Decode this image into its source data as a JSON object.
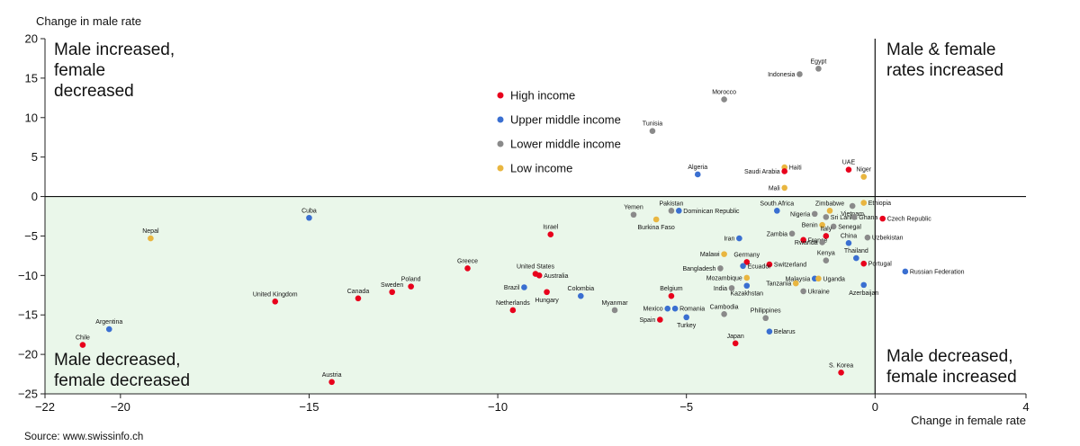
{
  "chart_data": {
    "type": "scatter",
    "title": "",
    "xlabel": "Change in female rate",
    "ylabel": "Change in male rate",
    "xlim": [
      -22,
      4
    ],
    "ylim": [
      -25,
      20
    ],
    "xticks": [
      -22,
      -20,
      -15,
      -10,
      -5,
      0,
      4
    ],
    "yticks": [
      20,
      15,
      10,
      5,
      0,
      -5,
      -10,
      -15,
      -20,
      -25
    ],
    "source": "Source: www.swissinfo.ch",
    "quadrants": {
      "top_left": [
        "Male increased,",
        "female",
        "decreased"
      ],
      "top_right": [
        "Male & female",
        "rates increased"
      ],
      "bottom_left": [
        "Male decreased,",
        "female decreased"
      ],
      "bottom_right": [
        "Male decreased,",
        "female increased"
      ]
    },
    "shaded_region": {
      "x": [
        -22,
        0
      ],
      "y": [
        -25,
        0
      ],
      "color": "#eaf7ea"
    },
    "legend": [
      {
        "key": "high",
        "label": "High income",
        "color": "#e8001c"
      },
      {
        "key": "upper",
        "label": "Upper middle income",
        "color": "#3a6fd1"
      },
      {
        "key": "lower",
        "label": "Lower middle income",
        "color": "#8a8a8a"
      },
      {
        "key": "low",
        "label": "Low income",
        "color": "#e9b640"
      }
    ],
    "points": [
      {
        "name": "Egypt",
        "x": -1.5,
        "y": 16.2,
        "group": "lower",
        "pos": "above"
      },
      {
        "name": "Indonesia",
        "x": -2.0,
        "y": 15.5,
        "group": "lower",
        "pos": "left"
      },
      {
        "name": "Morocco",
        "x": -4.0,
        "y": 12.3,
        "group": "lower",
        "pos": "above"
      },
      {
        "name": "Tunisia",
        "x": -5.9,
        "y": 8.3,
        "group": "lower",
        "pos": "above"
      },
      {
        "name": "Algeria",
        "x": -4.7,
        "y": 2.8,
        "group": "upper",
        "pos": "above"
      },
      {
        "name": "Haiti",
        "x": -2.4,
        "y": 3.7,
        "group": "low",
        "pos": "right"
      },
      {
        "name": "Saudi Arabia",
        "x": -2.4,
        "y": 3.2,
        "group": "high",
        "pos": "left"
      },
      {
        "name": "UAE",
        "x": -0.7,
        "y": 3.4,
        "group": "high",
        "pos": "above"
      },
      {
        "name": "Niger",
        "x": -0.3,
        "y": 2.5,
        "group": "low",
        "pos": "above"
      },
      {
        "name": "Mali",
        "x": -2.4,
        "y": 1.1,
        "group": "low",
        "pos": "left"
      },
      {
        "name": "Cuba",
        "x": -15.0,
        "y": -2.7,
        "group": "upper",
        "pos": "above"
      },
      {
        "name": "Nepal",
        "x": -19.2,
        "y": -5.3,
        "group": "low",
        "pos": "above"
      },
      {
        "name": "Israel",
        "x": -8.6,
        "y": -4.8,
        "group": "high",
        "pos": "above"
      },
      {
        "name": "Yemen",
        "x": -6.4,
        "y": -2.3,
        "group": "lower",
        "pos": "above"
      },
      {
        "name": "Pakistan",
        "x": -5.4,
        "y": -1.8,
        "group": "lower",
        "pos": "above"
      },
      {
        "name": "Dominican Republic",
        "x": -5.2,
        "y": -1.8,
        "group": "upper",
        "pos": "right"
      },
      {
        "name": "Burkina Faso",
        "x": -5.8,
        "y": -2.9,
        "group": "low",
        "pos": "below"
      },
      {
        "name": "South Africa",
        "x": -2.6,
        "y": -1.8,
        "group": "upper",
        "pos": "above"
      },
      {
        "name": "Zimbabwe",
        "x": -1.2,
        "y": -1.8,
        "group": "low",
        "pos": "above"
      },
      {
        "name": "Ethiopia",
        "x": -0.3,
        "y": -0.8,
        "group": "low",
        "pos": "right"
      },
      {
        "name": "Vietnam",
        "x": -0.6,
        "y": -1.2,
        "group": "lower",
        "pos": "below"
      },
      {
        "name": "Nigeria",
        "x": -1.6,
        "y": -2.2,
        "group": "lower",
        "pos": "left"
      },
      {
        "name": "Sri Lanka",
        "x": -1.3,
        "y": -2.6,
        "group": "lower",
        "pos": "right"
      },
      {
        "name": "Ghana",
        "x": -0.55,
        "y": -2.6,
        "group": "lower",
        "pos": "right"
      },
      {
        "name": "Czech Republic",
        "x": 0.2,
        "y": -2.8,
        "group": "high",
        "pos": "right"
      },
      {
        "name": "Benin",
        "x": -1.4,
        "y": -3.6,
        "group": "low",
        "pos": "left"
      },
      {
        "name": "Senegal",
        "x": -1.1,
        "y": -3.8,
        "group": "lower",
        "pos": "right"
      },
      {
        "name": "Zambia",
        "x": -2.2,
        "y": -4.7,
        "group": "lower",
        "pos": "left"
      },
      {
        "name": "Iran",
        "x": -3.6,
        "y": -5.3,
        "group": "upper",
        "pos": "left"
      },
      {
        "name": "Italy",
        "x": -1.3,
        "y": -5.0,
        "group": "high",
        "pos": "above"
      },
      {
        "name": "France",
        "x": -1.9,
        "y": -5.5,
        "group": "high",
        "pos": "right"
      },
      {
        "name": "Rwanda",
        "x": -1.4,
        "y": -5.8,
        "group": "lower",
        "pos": "left"
      },
      {
        "name": "China",
        "x": -0.7,
        "y": -5.9,
        "group": "upper",
        "pos": "above"
      },
      {
        "name": "Uzbekistan",
        "x": -0.2,
        "y": -5.2,
        "group": "lower",
        "pos": "right"
      },
      {
        "name": "Malawi",
        "x": -4.0,
        "y": -7.3,
        "group": "low",
        "pos": "left"
      },
      {
        "name": "Germany",
        "x": -3.4,
        "y": -8.3,
        "group": "high",
        "pos": "above"
      },
      {
        "name": "Kenya",
        "x": -1.3,
        "y": -8.1,
        "group": "lower",
        "pos": "above"
      },
      {
        "name": "Thailand",
        "x": -0.5,
        "y": -7.8,
        "group": "upper",
        "pos": "above"
      },
      {
        "name": "Switzerland",
        "x": -2.8,
        "y": -8.6,
        "group": "high",
        "pos": "right"
      },
      {
        "name": "Portugal",
        "x": -0.3,
        "y": -8.5,
        "group": "high",
        "pos": "right"
      },
      {
        "name": "Ecuador",
        "x": -3.5,
        "y": -8.8,
        "group": "upper",
        "pos": "right"
      },
      {
        "name": "Bangladesh",
        "x": -4.1,
        "y": -9.1,
        "group": "lower",
        "pos": "left"
      },
      {
        "name": "Russian Federation",
        "x": 0.8,
        "y": -9.5,
        "group": "upper",
        "pos": "right"
      },
      {
        "name": "Mozambique",
        "x": -3.4,
        "y": -10.3,
        "group": "low",
        "pos": "left"
      },
      {
        "name": "Malaysia",
        "x": -1.6,
        "y": -10.4,
        "group": "upper",
        "pos": "left"
      },
      {
        "name": "Uganda",
        "x": -1.5,
        "y": -10.4,
        "group": "low",
        "pos": "right"
      },
      {
        "name": "Tanzania",
        "x": -2.1,
        "y": -11.0,
        "group": "low",
        "pos": "left"
      },
      {
        "name": "Azerbaijan",
        "x": -0.3,
        "y": -11.2,
        "group": "upper",
        "pos": "below"
      },
      {
        "name": "India",
        "x": -3.8,
        "y": -11.6,
        "group": "lower",
        "pos": "left"
      },
      {
        "name": "Kazakhstan",
        "x": -3.4,
        "y": -11.3,
        "group": "upper",
        "pos": "below"
      },
      {
        "name": "Ukraine",
        "x": -1.9,
        "y": -12.0,
        "group": "lower",
        "pos": "right"
      },
      {
        "name": "United Kingdom",
        "x": -15.9,
        "y": -13.3,
        "group": "high",
        "pos": "above"
      },
      {
        "name": "Argentina",
        "x": -20.3,
        "y": -16.8,
        "group": "upper",
        "pos": "above"
      },
      {
        "name": "Chile",
        "x": -21.0,
        "y": -18.8,
        "group": "high",
        "pos": "above"
      },
      {
        "name": "Canada",
        "x": -13.7,
        "y": -12.9,
        "group": "high",
        "pos": "above"
      },
      {
        "name": "Sweden",
        "x": -12.8,
        "y": -12.1,
        "group": "high",
        "pos": "above"
      },
      {
        "name": "Poland",
        "x": -12.3,
        "y": -11.4,
        "group": "high",
        "pos": "above"
      },
      {
        "name": "Greece",
        "x": -10.8,
        "y": -9.1,
        "group": "high",
        "pos": "above"
      },
      {
        "name": "United States",
        "x": -9.0,
        "y": -9.8,
        "group": "high",
        "pos": "above"
      },
      {
        "name": "Australia",
        "x": -8.9,
        "y": -10.0,
        "group": "high",
        "pos": "right"
      },
      {
        "name": "Brazil",
        "x": -9.3,
        "y": -11.5,
        "group": "upper",
        "pos": "left"
      },
      {
        "name": "Hungary",
        "x": -8.7,
        "y": -12.1,
        "group": "high",
        "pos": "below"
      },
      {
        "name": "Netherlands",
        "x": -9.6,
        "y": -14.4,
        "group": "high",
        "pos": "above"
      },
      {
        "name": "Colombia",
        "x": -7.8,
        "y": -12.6,
        "group": "upper",
        "pos": "above"
      },
      {
        "name": "Myanmar",
        "x": -6.9,
        "y": -14.4,
        "group": "lower",
        "pos": "above"
      },
      {
        "name": "Belgium",
        "x": -5.4,
        "y": -12.6,
        "group": "high",
        "pos": "above"
      },
      {
        "name": "Mexico",
        "x": -5.5,
        "y": -14.2,
        "group": "upper",
        "pos": "left"
      },
      {
        "name": "Romania",
        "x": -5.3,
        "y": -14.2,
        "group": "upper",
        "pos": "right"
      },
      {
        "name": "Spain",
        "x": -5.7,
        "y": -15.6,
        "group": "high",
        "pos": "left"
      },
      {
        "name": "Turkey",
        "x": -5.0,
        "y": -15.3,
        "group": "upper",
        "pos": "below"
      },
      {
        "name": "Cambodia",
        "x": -4.0,
        "y": -14.9,
        "group": "lower",
        "pos": "above"
      },
      {
        "name": "Philippines",
        "x": -2.9,
        "y": -15.4,
        "group": "lower",
        "pos": "above"
      },
      {
        "name": "Belarus",
        "x": -2.8,
        "y": -17.1,
        "group": "upper",
        "pos": "right"
      },
      {
        "name": "Japan",
        "x": -3.7,
        "y": -18.6,
        "group": "high",
        "pos": "above"
      },
      {
        "name": "Austria",
        "x": -14.4,
        "y": -23.5,
        "group": "high",
        "pos": "above"
      },
      {
        "name": "S. Korea",
        "x": -0.9,
        "y": -22.3,
        "group": "high",
        "pos": "above"
      }
    ]
  }
}
